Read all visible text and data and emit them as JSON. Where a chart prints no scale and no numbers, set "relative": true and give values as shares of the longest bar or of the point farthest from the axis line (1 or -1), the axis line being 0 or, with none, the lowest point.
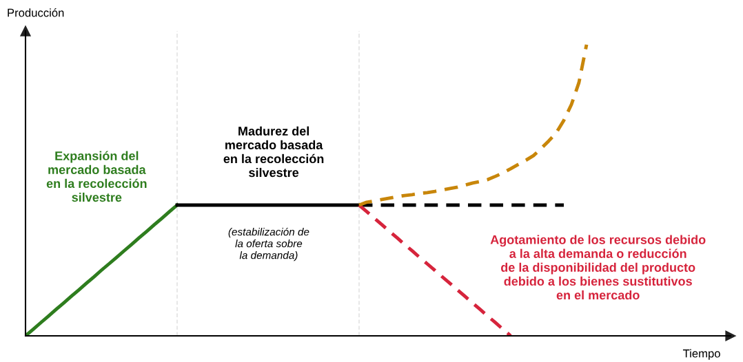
{
  "chart_data": {
    "type": "line",
    "relative": true,
    "ylabel": "Producción",
    "categories": [
      null,
      null,
      null,
      null,
      null,
      null,
      null,
      null,
      null,
      null,
      null,
      null,
      null,
      null,
      null,
      null,
      null,
      null,
      null,
      null,
      null,
      null,
      null,
      null,
      null,
      null,
      null,
      null,
      null,
      null,
      null,
      null,
      null,
      null,
      null,
      null,
      null,
      null,
      null,
      null,
      null,
      null,
      null,
      null,
      null,
      null,
      null,
      null,
      null,
      null,
      null,
      null,
      null,
      null,
      null,
      null,
      null,
      null,
      null,
      null,
      null,
      null,
      null,
      null,
      null,
      null,
      null,
      null,
      null,
      null,
      null,
      null,
      null,
      null,
      null
    ],
    "series": [
      {
        "color": "#2e7d1e",
        "line_style": "solid",
        "values": [
          0,
          0.022,
          0.045,
          0.067,
          0.09,
          0.112,
          0.135,
          0.157,
          0.18,
          0.202,
          0.225,
          0.247,
          0.269,
          0.292,
          0.314,
          0.337,
          0.359,
          0.382,
          0.404,
          0.427,
          0.449,
          null,
          null,
          null,
          null,
          null,
          null,
          null,
          null,
          null,
          null,
          null,
          null,
          null,
          null,
          null,
          null,
          null,
          null,
          null,
          null,
          null,
          null,
          null,
          null,
          null,
          null,
          null,
          null,
          null,
          null,
          null,
          null,
          null,
          null,
          null,
          null,
          null,
          null,
          null,
          null,
          null,
          null,
          null,
          null,
          null,
          null,
          null,
          null,
          null,
          null,
          null,
          null,
          null,
          null
        ]
      },
      {
        "color": "#000000",
        "line_style": "solid",
        "values": [
          null,
          null,
          null,
          null,
          null,
          null,
          null,
          null,
          null,
          null,
          null,
          null,
          null,
          null,
          null,
          null,
          null,
          null,
          null,
          null,
          0.449,
          0.449,
          0.449,
          0.449,
          0.449,
          0.449,
          0.449,
          0.449,
          0.449,
          0.449,
          0.449,
          0.449,
          0.449,
          0.449,
          0.449,
          0.449,
          0.449,
          0.449,
          0.449,
          0.449,
          0.449,
          0.449,
          0.449,
          0.449,
          0.449,
          null,
          null,
          null,
          null,
          null,
          null,
          null,
          null,
          null,
          null,
          null,
          null,
          null,
          null,
          null,
          null,
          null,
          null,
          null,
          null,
          null,
          null,
          null,
          null,
          null,
          null,
          null,
          null,
          null,
          null
        ]
      },
      {
        "color": "#000000",
        "line_style": "dashed",
        "values": [
          null,
          null,
          null,
          null,
          null,
          null,
          null,
          null,
          null,
          null,
          null,
          null,
          null,
          null,
          null,
          null,
          null,
          null,
          null,
          null,
          null,
          null,
          null,
          null,
          null,
          null,
          null,
          null,
          null,
          null,
          null,
          null,
          null,
          null,
          null,
          null,
          null,
          null,
          null,
          null,
          null,
          null,
          null,
          null,
          0.449,
          0.449,
          0.449,
          0.449,
          0.449,
          0.449,
          0.449,
          0.449,
          0.449,
          0.449,
          0.449,
          0.449,
          0.449,
          0.449,
          0.449,
          0.449,
          0.449,
          0.449,
          0.449,
          0.449,
          0.449,
          0.449,
          0.449,
          0.449,
          0.449,
          0.449,
          0.449,
          0.449,
          null,
          null,
          null
        ]
      },
      {
        "color": "#d6243c",
        "line_style": "dashed",
        "values": [
          null,
          null,
          null,
          null,
          null,
          null,
          null,
          null,
          null,
          null,
          null,
          null,
          null,
          null,
          null,
          null,
          null,
          null,
          null,
          null,
          null,
          null,
          null,
          null,
          null,
          null,
          null,
          null,
          null,
          null,
          null,
          null,
          null,
          null,
          null,
          null,
          null,
          null,
          null,
          null,
          null,
          null,
          null,
          null,
          0.449,
          0.427,
          0.404,
          0.382,
          0.359,
          0.337,
          0.314,
          0.292,
          0.269,
          0.247,
          0.225,
          0.202,
          0.18,
          0.157,
          0.135,
          0.112,
          0.09,
          0.067,
          0.045,
          0.022,
          0,
          null,
          null,
          null,
          null,
          null,
          null,
          null,
          null,
          null,
          null
        ]
      },
      {
        "color": "#c8860a",
        "line_style": "dashed",
        "values": [
          null,
          null,
          null,
          null,
          null,
          null,
          null,
          null,
          null,
          null,
          null,
          null,
          null,
          null,
          null,
          null,
          null,
          null,
          null,
          null,
          null,
          null,
          null,
          null,
          null,
          null,
          null,
          null,
          null,
          null,
          null,
          null,
          null,
          null,
          null,
          null,
          null,
          null,
          null,
          null,
          null,
          null,
          null,
          null,
          0.449,
          0.459,
          0.463,
          0.468,
          0.473,
          0.478,
          0.482,
          0.485,
          0.489,
          0.492,
          0.496,
          0.501,
          0.506,
          0.511,
          0.518,
          0.525,
          0.53,
          0.537,
          0.548,
          0.56,
          0.574,
          0.589,
          0.603,
          0.619,
          0.643,
          0.669,
          0.697,
          0.74,
          0.794,
          0.87,
          1
        ]
      }
    ],
    "annotations": [
      "Expansión del\nmercado basada\nen la recolección\nsilvestre",
      "Madurez del\nmercado basada\nen la recolección\nsilvestre",
      "(estabilización de\nla oferta sobre\nla demanda)",
      "Agotamiento de los recursos debido\na la alta demanda o reducción\nde la disponibilidad del producto\ndebido a los bienes sustitutivos\nen el mercado",
      "Tiempo"
    ]
  }
}
